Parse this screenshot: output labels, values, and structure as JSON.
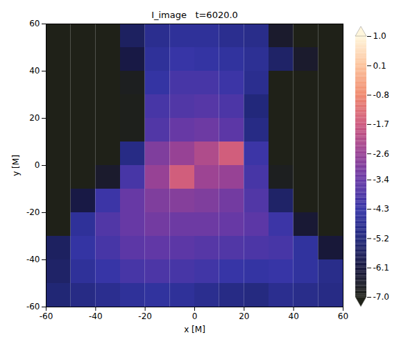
{
  "chart_data": {
    "type": "heatmap",
    "title": "I_image   t=6020.0",
    "x_label": "x [M]",
    "y_label": "y [M]",
    "xlim": [
      -60,
      60
    ],
    "ylim": [
      -60,
      60
    ],
    "xticks": [
      -60,
      -40,
      -20,
      0,
      20,
      40,
      60
    ],
    "yticks": [
      -60,
      -40,
      -20,
      0,
      20,
      40,
      60
    ],
    "x": [
      -55,
      -45,
      -35,
      -25,
      -15,
      -5,
      5,
      15,
      25,
      35,
      45,
      55
    ],
    "y": [
      55,
      45,
      35,
      25,
      15,
      5,
      -5,
      -15,
      -25,
      -35,
      -45,
      -55
    ],
    "values": [
      [
        -7.0,
        -7.0,
        -7.0,
        -5.6,
        -4.8,
        -4.6,
        -4.6,
        -4.8,
        -4.9,
        -6.5,
        -7.0,
        -7.0
      ],
      [
        -7.0,
        -7.0,
        -7.0,
        -6.0,
        -4.6,
        -4.3,
        -4.4,
        -4.5,
        -4.7,
        -5.5,
        -6.5,
        -7.0
      ],
      [
        -7.0,
        -7.0,
        -7.0,
        -6.8,
        -4.4,
        -4.0,
        -4.0,
        -4.2,
        -4.8,
        -7.0,
        -7.0,
        -7.0
      ],
      [
        -7.0,
        -7.0,
        -7.0,
        -6.9,
        -4.0,
        -3.8,
        -3.7,
        -3.9,
        -5.2,
        -7.0,
        -7.0,
        -7.0
      ],
      [
        -7.0,
        -7.0,
        -7.0,
        -6.9,
        -3.8,
        -3.4,
        -3.3,
        -3.6,
        -5.0,
        -7.0,
        -7.0,
        -7.0
      ],
      [
        -7.0,
        -7.0,
        -7.0,
        -5.0,
        -3.0,
        -2.6,
        -2.2,
        -1.6,
        -4.2,
        -7.0,
        -7.0,
        -7.0
      ],
      [
        -7.0,
        -7.0,
        -6.5,
        -4.0,
        -2.6,
        -1.6,
        -2.5,
        -2.6,
        -4.0,
        -6.8,
        -7.0,
        -7.0
      ],
      [
        -7.0,
        -6.0,
        -4.2,
        -3.4,
        -3.0,
        -2.9,
        -3.0,
        -3.2,
        -3.8,
        -5.5,
        -7.0,
        -7.0
      ],
      [
        -7.0,
        -4.6,
        -3.8,
        -3.4,
        -3.2,
        -3.3,
        -3.3,
        -3.4,
        -3.6,
        -4.2,
        -6.3,
        -7.0
      ],
      [
        -5.6,
        -4.4,
        -4.0,
        -3.6,
        -3.5,
        -3.6,
        -3.7,
        -3.8,
        -3.9,
        -4.0,
        -4.5,
        -6.2
      ],
      [
        -5.5,
        -4.6,
        -4.3,
        -4.0,
        -3.9,
        -4.0,
        -4.1,
        -4.3,
        -4.4,
        -4.3,
        -4.5,
        -4.9
      ],
      [
        -5.3,
        -5.0,
        -4.8,
        -4.6,
        -4.5,
        -4.6,
        -4.8,
        -5.0,
        -5.1,
        -4.8,
        -4.9,
        -5.0
      ]
    ],
    "colorbar": {
      "range": [
        -7,
        1
      ],
      "ticks": [
        {
          "value": 1,
          "label": "1.0"
        },
        0.1,
        -0.8,
        -1.7,
        -2.6,
        -3.4,
        -4.3,
        -5.2,
        -6.1,
        {
          "value": -7,
          "label": "-7.0"
        }
      ]
    }
  }
}
